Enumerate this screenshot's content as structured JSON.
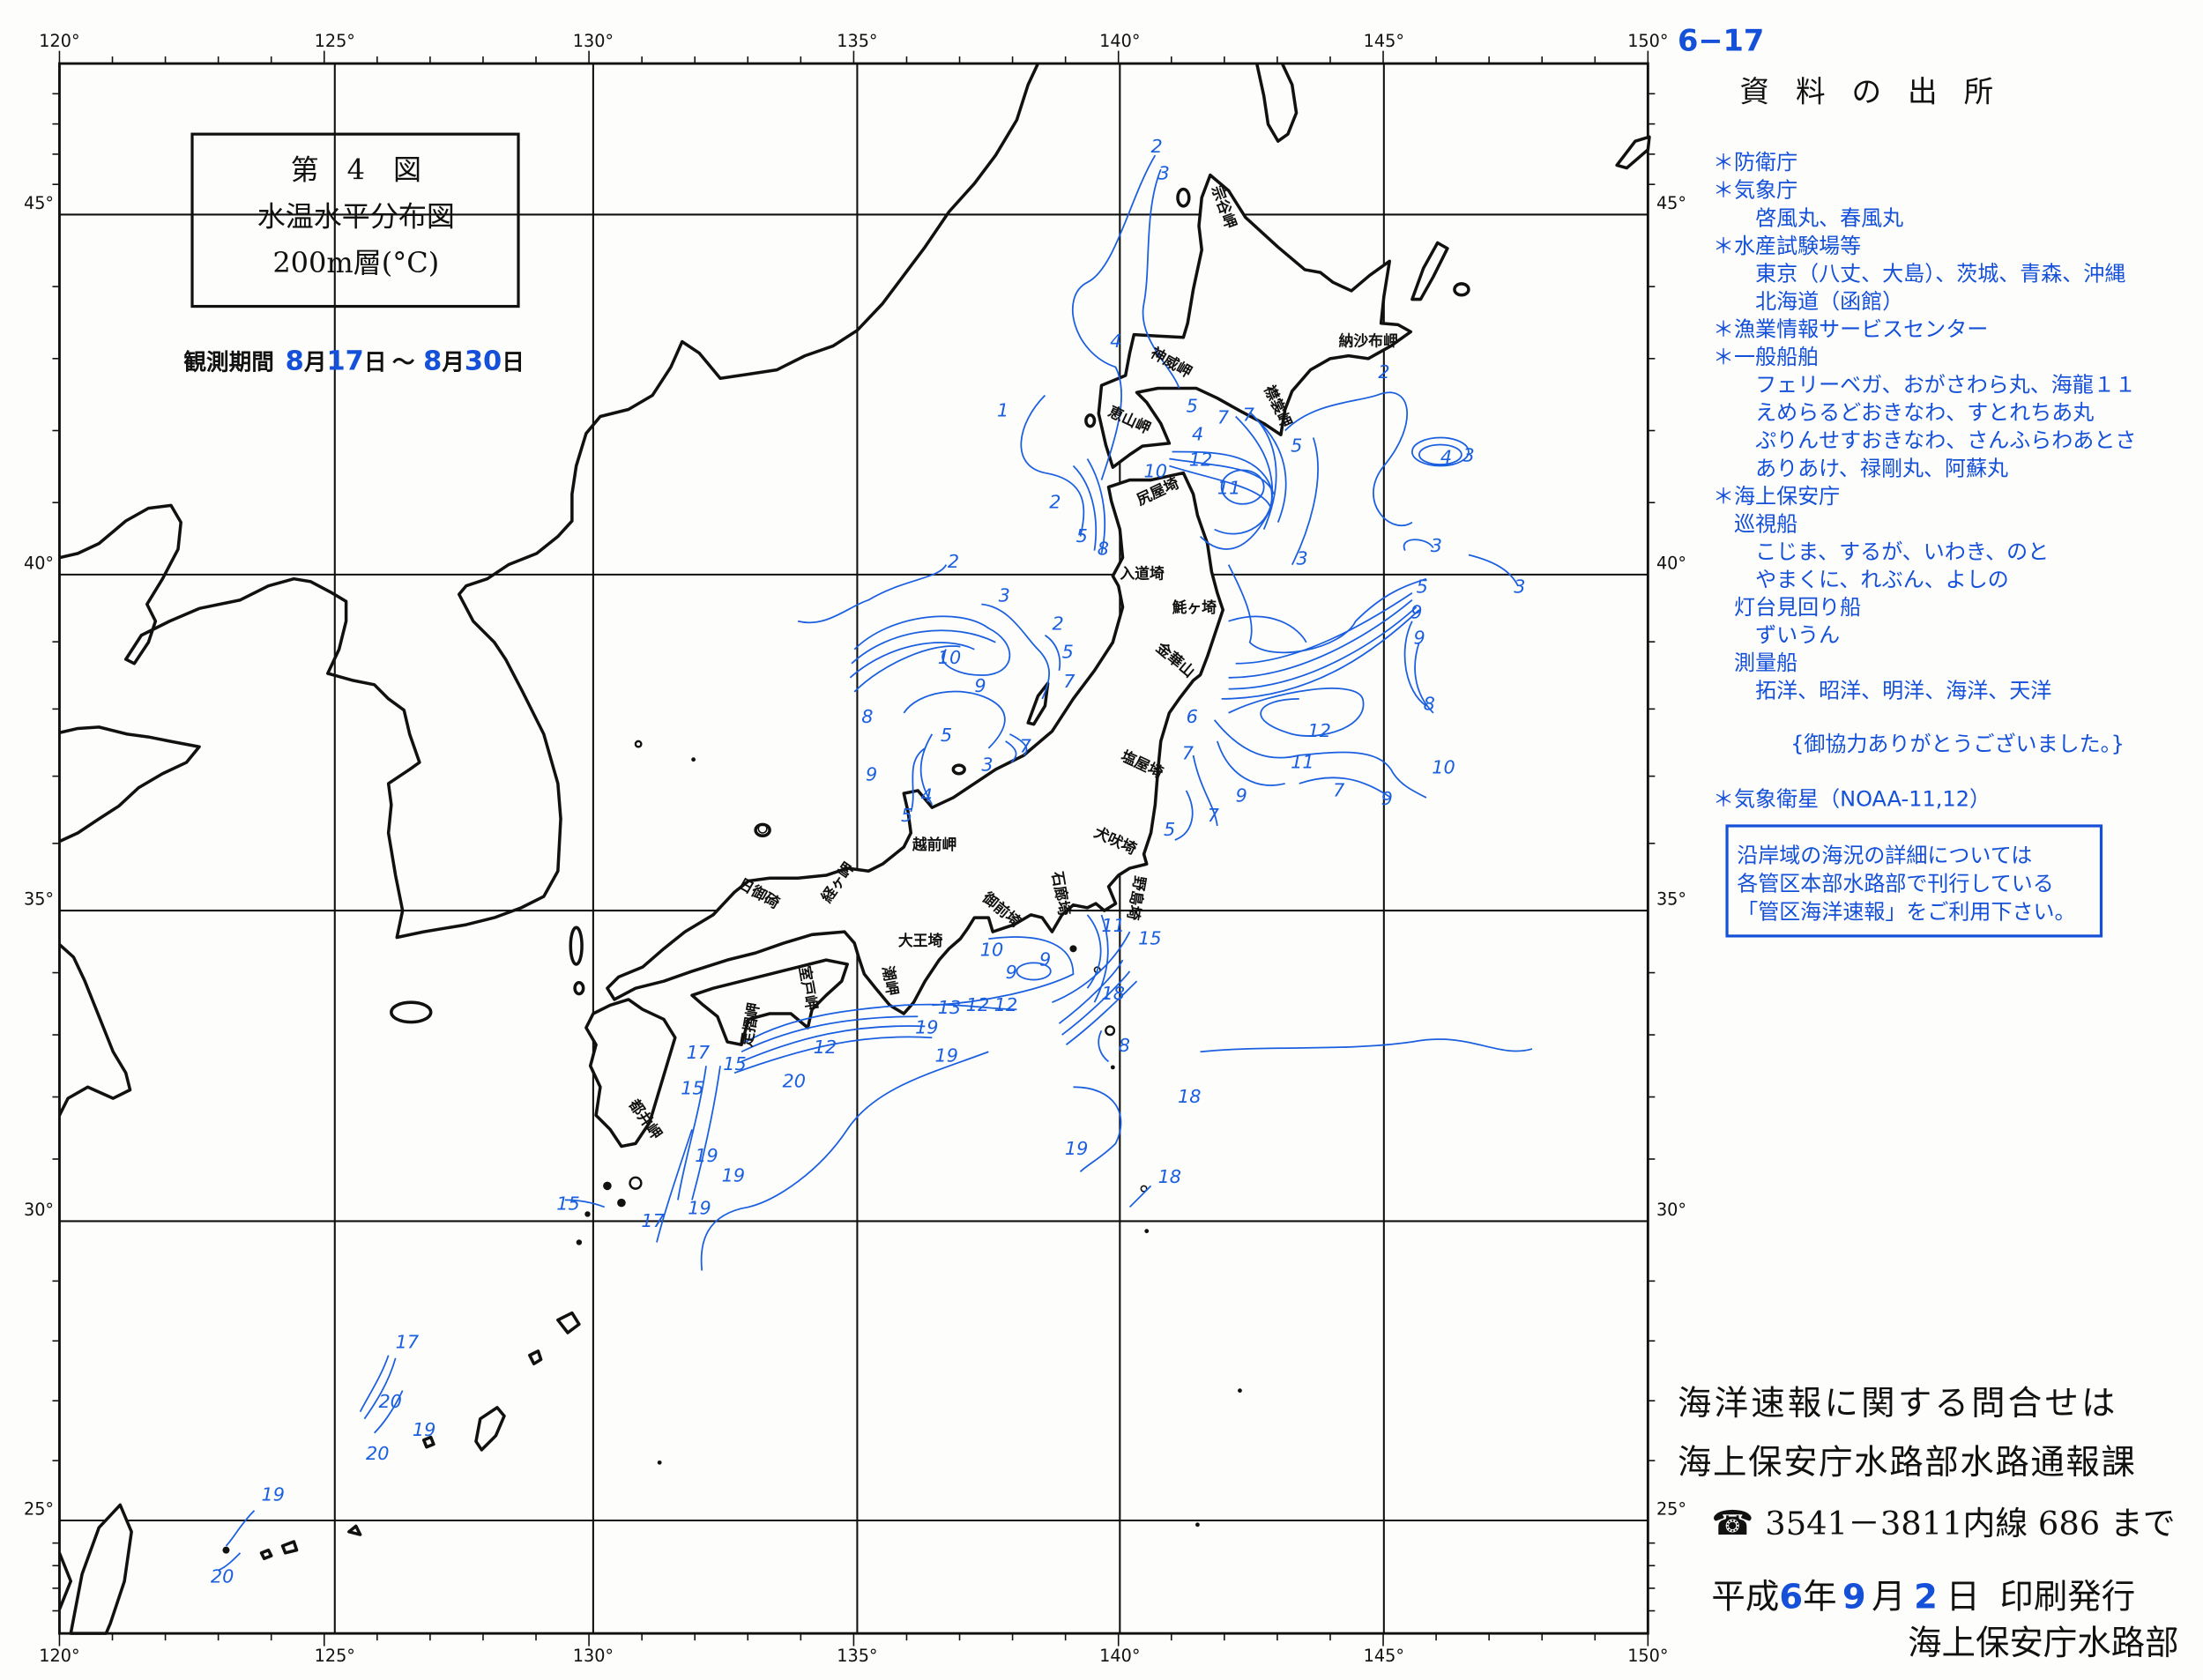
{
  "page_number": "6−17",
  "title_box": {
    "line1": "第　4　図",
    "line2": "水温水平分布図",
    "line3": "200m層(°C)"
  },
  "observation": {
    "label": "観測期間",
    "start_month": "8",
    "start_month_unit": "月",
    "start_day": "17",
    "start_day_unit": "日",
    "separator": "～",
    "end_month": "8",
    "end_month_unit": "月",
    "end_day": "30",
    "end_day_unit": "日"
  },
  "map": {
    "lon_labels": [
      "120°",
      "125°",
      "130°",
      "135°",
      "140°",
      "145°",
      "150°"
    ],
    "lat_labels": [
      "45°",
      "40°",
      "35°",
      "30°",
      "25°"
    ],
    "capes": [
      "宗谷岬",
      "納沙布岬",
      "神威岬",
      "恵山岬",
      "襟裳岬",
      "尻屋埼",
      "入道埼",
      "魹ヶ埼",
      "金華山",
      "塩屋埼",
      "犬吠埼",
      "野島埼",
      "石廊埼",
      "御前埼",
      "大王埼",
      "潮岬",
      "室戸岬",
      "足摺岬",
      "都井岬",
      "越前岬",
      "経ヶ岬",
      "日御碕"
    ],
    "contour_labels": [
      "2",
      "3",
      "4",
      "1",
      "2",
      "5",
      "8",
      "5",
      "4",
      "10",
      "12",
      "11",
      "7",
      "7",
      "5",
      "2",
      "4",
      "3",
      "3",
      "3",
      "3",
      "5",
      "9",
      "9",
      "8",
      "10",
      "6",
      "7",
      "12",
      "11",
      "9",
      "7",
      "9",
      "7",
      "5",
      "2",
      "3",
      "2",
      "5",
      "7",
      "10",
      "9",
      "8",
      "5",
      "3",
      "7",
      "9",
      "4",
      "5",
      "11",
      "15",
      "10",
      "9",
      "9",
      "13",
      "12",
      "12",
      "18",
      "8",
      "18",
      "19",
      "18",
      "19",
      "19",
      "20",
      "12",
      "17",
      "15",
      "15",
      "19",
      "19",
      "19",
      "15",
      "17",
      "17",
      "20",
      "19",
      "20",
      "19",
      "20"
    ],
    "line_color": "#1a5fe0",
    "coast_color": "#111111"
  },
  "sources": {
    "heading": "資 料 の 出 所",
    "lines": [
      "＊防衛庁",
      "＊気象庁",
      "啓風丸、春風丸",
      "＊水産試験場等",
      "東京（八丈、大島）、茨城、青森、沖縄",
      "北海道（函館）",
      "＊漁業情報サービスセンター",
      "＊一般船舶",
      "フェリーベガ、おがさわら丸、海龍１１",
      "えめらるどおきなわ、すとれちあ丸",
      "ぷりんせすおきなわ、さんふらわあとさ",
      "ありあけ、禄剛丸、阿蘇丸",
      "＊海上保安庁",
      "巡視船",
      "こじま、するが、いわき、のと",
      "やまくに、れぶん、よしの",
      "灯台見回り船",
      "ずいうん",
      "測量船",
      "拓洋、昭洋、明洋、海洋、天洋"
    ],
    "thanks": "{御協力ありがとうございました。}",
    "satellite": "＊気象衛星（NOAA-11,12）",
    "notice": [
      "沿岸域の海況の詳細については",
      "各管区本部水路部で刊行している",
      "「管区海洋速報」をご利用下さい。"
    ]
  },
  "contact": {
    "line1": "海洋速報に関する問合せは",
    "line2": "海上保安庁水路部水路通報課",
    "phone_icon": "telephone-icon",
    "phone_glyph": "☎",
    "phone": "3541－3811内線 686 まで"
  },
  "publication": {
    "era": "平成",
    "year": "6",
    "year_unit": "年",
    "month": "9",
    "month_unit": "月",
    "day": "2",
    "day_unit": "日",
    "action": "印刷発行",
    "publisher": "海上保安庁水路部"
  },
  "colors": {
    "accent_blue": "#1450d8",
    "text": "#111111"
  }
}
